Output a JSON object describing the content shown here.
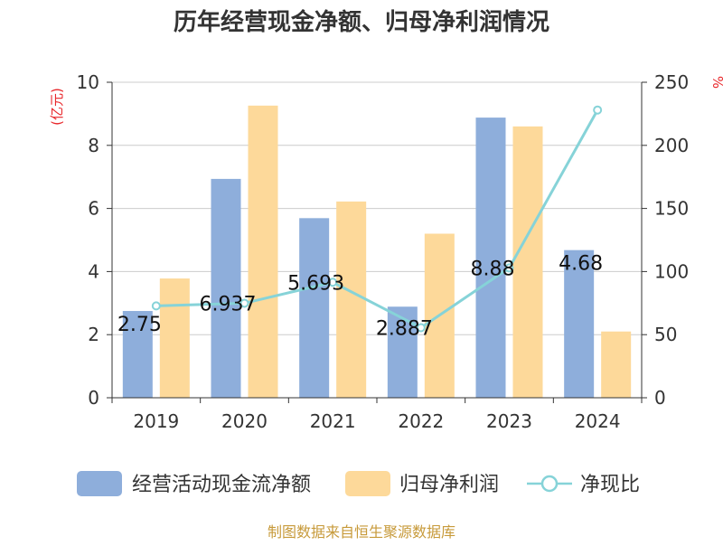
{
  "chart_data": {
    "type": "bar+line",
    "title": "历年经营现金净额、归母净利润情况",
    "categories": [
      "2019",
      "2020",
      "2021",
      "2022",
      "2023",
      "2024"
    ],
    "series": [
      {
        "name": "经营活动现金流净额",
        "type": "bar",
        "axis": "left",
        "color": "#8eaedb",
        "values": [
          2.75,
          6.937,
          5.693,
          2.887,
          8.88,
          4.68
        ],
        "labels": [
          "2.75",
          "6.937",
          "5.693",
          "2.887",
          "8.88",
          "4.68"
        ]
      },
      {
        "name": "归母净利润",
        "type": "bar",
        "axis": "left",
        "color": "#fdd99a",
        "values": [
          3.78,
          9.26,
          6.22,
          5.2,
          8.6,
          2.1
        ]
      },
      {
        "name": "净现比",
        "type": "line",
        "axis": "right",
        "color": "#86d3d8",
        "values": [
          72.8,
          74.9,
          91.5,
          55.5,
          102.9,
          228.0
        ]
      }
    ],
    "y_left": {
      "label": "(亿元)",
      "min": 0,
      "max": 10,
      "ticks": [
        0,
        2,
        4,
        6,
        8,
        10
      ]
    },
    "y_right": {
      "label": "%",
      "min": 0,
      "max": 250,
      "ticks": [
        0,
        50,
        100,
        150,
        200,
        250
      ]
    },
    "grid": true,
    "legend_position": "bottom",
    "source": "制图数据来自恒生聚源数据库"
  },
  "colors": {
    "axis_label": "#e8262a",
    "grid": "#cccccc",
    "axis": "#333333",
    "source": "#c79a3a"
  }
}
